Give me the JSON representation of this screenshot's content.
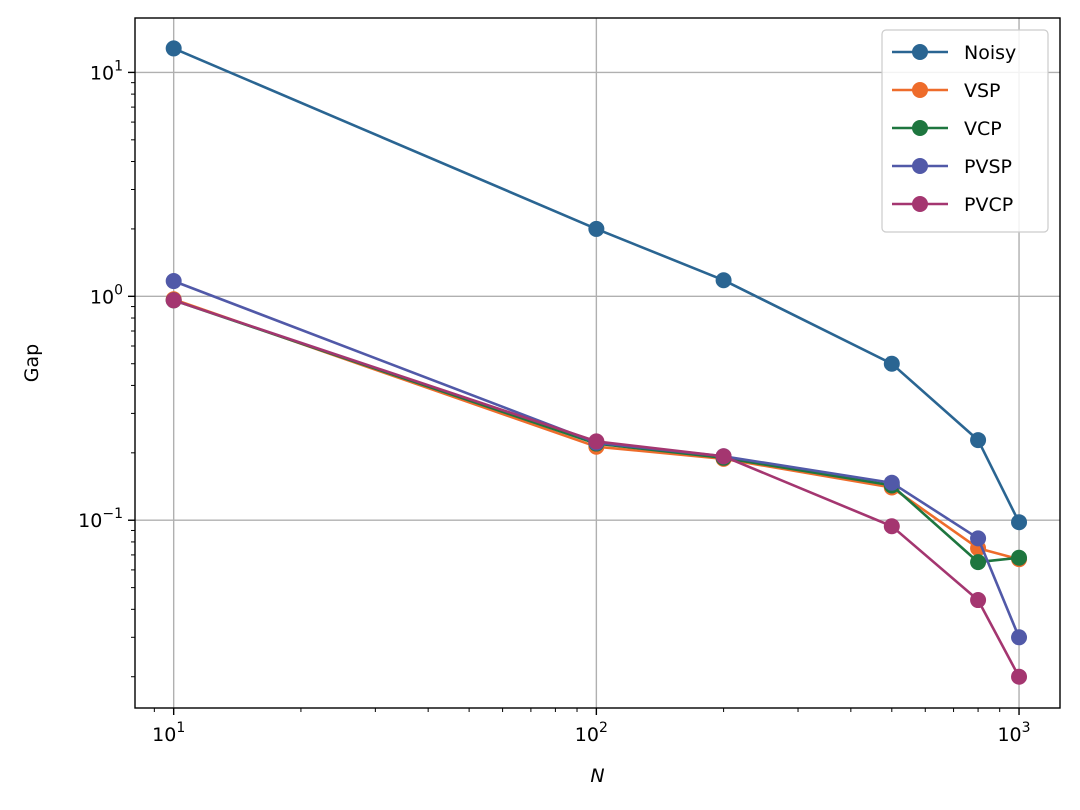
{
  "chart_data": {
    "type": "line",
    "xlabel": "N",
    "ylabel": "Gap",
    "x_scale": "log",
    "y_scale": "log",
    "xlim": [
      8.1,
      1250
    ],
    "ylim": [
      0.0145,
      17.5
    ],
    "x_ticks": [
      {
        "value": 10,
        "base": "10",
        "exp": "1"
      },
      {
        "value": 100,
        "base": "10",
        "exp": "2"
      },
      {
        "value": 1000,
        "base": "10",
        "exp": "3"
      }
    ],
    "y_ticks": [
      {
        "value": 0.1,
        "base": "10",
        "exp": "−1"
      },
      {
        "value": 1,
        "base": "10",
        "exp": "0"
      },
      {
        "value": 10,
        "base": "10",
        "exp": "1"
      }
    ],
    "grid": true,
    "legend_position": "top-right",
    "x": [
      10,
      100,
      200,
      500,
      800,
      1000
    ],
    "series": [
      {
        "name": "Noisy",
        "color": "#2a6592",
        "values": [
          12.8,
          2.0,
          1.18,
          0.5,
          0.228,
          0.098
        ]
      },
      {
        "name": "VSP",
        "color": "#ee6c2b",
        "values": [
          0.97,
          0.213,
          0.188,
          0.14,
          0.075,
          0.067
        ]
      },
      {
        "name": "VCP",
        "color": "#1e763f",
        "values": [
          0.96,
          0.22,
          0.19,
          0.143,
          0.065,
          0.068
        ]
      },
      {
        "name": "PVSP",
        "color": "#5159a8",
        "values": [
          1.17,
          0.222,
          0.193,
          0.147,
          0.083,
          0.03
        ]
      },
      {
        "name": "PVCP",
        "color": "#a43670",
        "values": [
          0.96,
          0.225,
          0.193,
          0.094,
          0.044,
          0.02
        ]
      }
    ]
  }
}
